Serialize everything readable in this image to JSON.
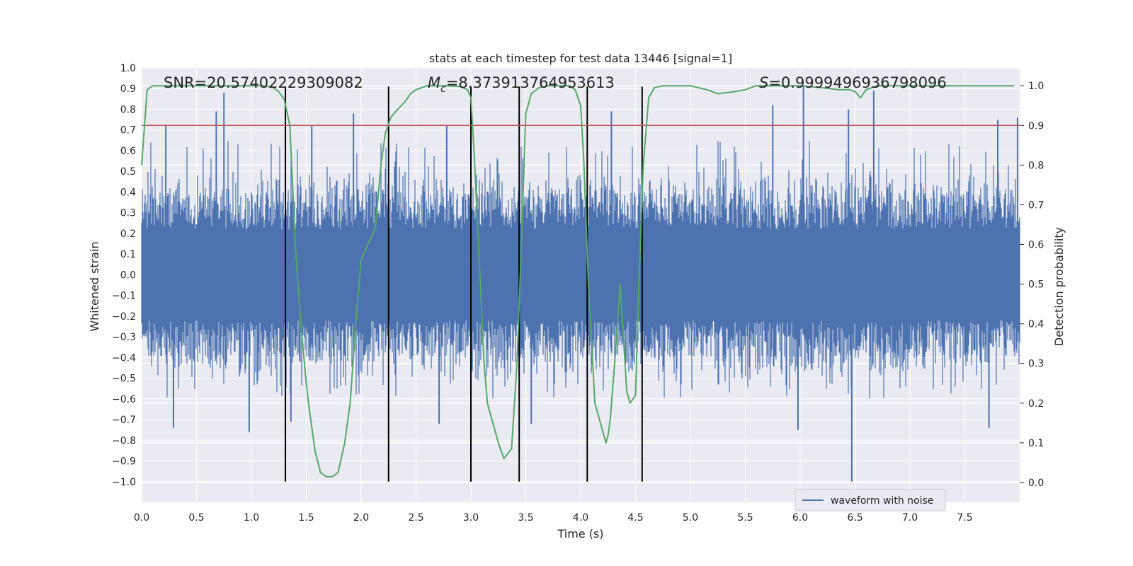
{
  "chart_data": {
    "type": "line",
    "title": "stats at each timestep for test data 13446 [signal=1]",
    "xlabel": "Time (s)",
    "ylabel": "Whitened strain",
    "y2label": "Detection probability",
    "xlim": [
      0,
      8.0
    ],
    "ylim": [
      -1.1,
      1.0
    ],
    "y2lim": [
      -0.05,
      1.045
    ],
    "xticks": [
      0.0,
      0.5,
      1.0,
      1.5,
      2.0,
      2.5,
      3.0,
      3.5,
      4.0,
      4.5,
      5.0,
      5.5,
      6.0,
      6.5,
      7.0,
      7.5
    ],
    "yticks": [
      1.0,
      0.9,
      0.8,
      0.7,
      0.6,
      0.5,
      0.4,
      0.3,
      0.2,
      0.1,
      0.0,
      -0.1,
      -0.2,
      -0.3,
      -0.4,
      -0.5,
      -0.6,
      -0.7,
      -0.8,
      -0.9,
      -1.0
    ],
    "y2ticks": [
      1.0,
      0.9,
      0.8,
      0.7,
      0.6,
      0.5,
      0.4,
      0.3,
      0.2,
      0.1,
      0.0
    ],
    "annotations": {
      "snr": "SNR=20.57402229309082",
      "mc_symbol": "M",
      "mc_sub": "c",
      "mc_value": "=8.373913764953613",
      "s_symbol": "S",
      "s_value": "=0.9999496936798096"
    },
    "legend": {
      "label": "waveform with noise",
      "location": "lower-right"
    },
    "colors": {
      "waveform": "#4c72b0",
      "probability": "#55a868",
      "threshold": "#c44e52",
      "markers": "#000000",
      "background": "#eaeaf2",
      "grid": "#ffffff"
    },
    "waveform": {
      "name": "waveform with noise",
      "description_note": "dense whitened strain time series, amplitude mostly within ±0.45 with spikes",
      "spikes": [
        {
          "x": 0.75,
          "y": 0.88
        },
        {
          "x": 0.68,
          "y": 0.79
        },
        {
          "x": 0.22,
          "y": 0.72
        },
        {
          "x": 0.29,
          "y": -0.74
        },
        {
          "x": 0.98,
          "y": -0.76
        },
        {
          "x": 1.36,
          "y": -0.71
        },
        {
          "x": 1.55,
          "y": 0.72
        },
        {
          "x": 1.93,
          "y": 0.78
        },
        {
          "x": 2.78,
          "y": 0.72
        },
        {
          "x": 2.71,
          "y": -0.72
        },
        {
          "x": 3.55,
          "y": -0.72
        },
        {
          "x": 4.28,
          "y": 0.79
        },
        {
          "x": 5.75,
          "y": 0.82
        },
        {
          "x": 6.03,
          "y": 0.91
        },
        {
          "x": 6.44,
          "y": 0.8
        },
        {
          "x": 6.47,
          "y": -1.0
        },
        {
          "x": 6.67,
          "y": 0.89
        },
        {
          "x": 7.8,
          "y": 0.75
        },
        {
          "x": 7.98,
          "y": 0.76
        },
        {
          "x": 7.72,
          "y": -0.74
        },
        {
          "x": 5.98,
          "y": -0.75
        }
      ]
    },
    "threshold": {
      "y2": 0.9
    },
    "probability": {
      "name": "detection probability",
      "x": [
        0.0,
        0.05,
        0.1,
        0.2,
        0.3,
        0.5,
        0.7,
        0.9,
        1.0,
        1.1,
        1.15,
        1.2,
        1.25,
        1.3,
        1.35,
        1.4,
        1.45,
        1.5,
        1.52,
        1.58,
        1.63,
        1.68,
        1.74,
        1.79,
        1.85,
        1.9,
        1.95,
        2.0,
        2.06,
        2.13,
        2.18,
        2.22,
        2.27,
        2.33,
        2.4,
        2.45,
        2.5,
        2.55,
        2.6,
        2.7,
        2.8,
        2.9,
        2.97,
        3.0,
        3.03,
        3.07,
        3.12,
        3.15,
        3.2,
        3.25,
        3.3,
        3.37,
        3.42,
        3.46,
        3.5,
        3.55,
        3.62,
        3.7,
        3.8,
        3.9,
        3.95,
        4.0,
        4.03,
        4.07,
        4.13,
        4.18,
        4.23,
        4.25,
        4.27,
        4.31,
        4.36,
        4.42,
        4.45,
        4.5,
        4.53,
        4.57,
        4.62,
        4.67,
        4.75,
        5.0,
        5.15,
        5.25,
        5.4,
        5.5,
        5.6,
        5.8,
        6.0,
        6.2,
        6.35,
        6.45,
        6.5,
        6.55,
        6.6,
        6.7,
        7.0,
        7.5,
        7.95
      ],
      "y2": [
        0.8,
        0.99,
        1.0,
        1.0,
        1.0,
        1.0,
        1.0,
        1.0,
        1.0,
        1.0,
        0.998,
        0.995,
        0.985,
        0.965,
        0.9,
        0.6,
        0.4,
        0.25,
        0.2,
        0.08,
        0.025,
        0.015,
        0.015,
        0.025,
        0.1,
        0.2,
        0.4,
        0.56,
        0.6,
        0.64,
        0.8,
        0.88,
        0.92,
        0.94,
        0.96,
        0.98,
        0.99,
        0.995,
        1.0,
        1.0,
        1.0,
        0.998,
        0.99,
        0.97,
        0.83,
        0.6,
        0.3,
        0.2,
        0.15,
        0.1,
        0.06,
        0.085,
        0.3,
        0.6,
        0.93,
        0.98,
        0.995,
        1.0,
        1.0,
        1.0,
        0.99,
        0.95,
        0.8,
        0.5,
        0.2,
        0.15,
        0.1,
        0.12,
        0.16,
        0.3,
        0.5,
        0.23,
        0.2,
        0.22,
        0.5,
        0.8,
        0.97,
        0.995,
        1.0,
        1.0,
        0.99,
        0.98,
        0.985,
        0.99,
        1.0,
        1.0,
        1.0,
        0.995,
        0.99,
        0.99,
        0.985,
        0.97,
        0.99,
        1.0,
        1.0,
        1.0,
        1.0
      ]
    },
    "markers": {
      "x": [
        1.31,
        2.25,
        3.0,
        3.44,
        4.06,
        4.56
      ],
      "y_range": [
        -1.0,
        0.91
      ]
    }
  }
}
